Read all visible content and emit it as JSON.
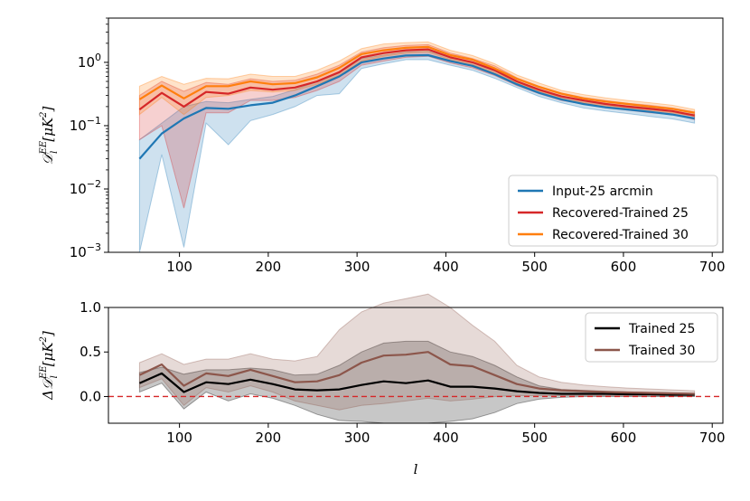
{
  "chart_data": [
    {
      "type": "line",
      "yscale": "log",
      "title": "",
      "ylabel": "D_l^EE [μK²]",
      "ylabel_parts": {
        "main": "𝒟",
        "sup": "EE",
        "sub": "l",
        "bracket": "[μK",
        "pow": "2",
        "close": "]"
      },
      "xlim": [
        20,
        712
      ],
      "ylim": [
        0.001,
        5
      ],
      "xticks": [
        100,
        200,
        300,
        400,
        500,
        600,
        700
      ],
      "xtick_labels": [
        "100",
        "200",
        "300",
        "400",
        "500",
        "600",
        "700"
      ],
      "yticks": [
        0.001,
        0.01,
        0.1,
        1
      ],
      "ytick_labels": [
        {
          "base": "10",
          "exp": "−3"
        },
        {
          "base": "10",
          "exp": "−2"
        },
        {
          "base": "10",
          "exp": "−1"
        },
        {
          "base": "10",
          "exp": "0"
        }
      ],
      "legend_position": "lower-right",
      "x": [
        55,
        80,
        105,
        130,
        155,
        180,
        205,
        230,
        255,
        280,
        305,
        330,
        355,
        380,
        405,
        430,
        455,
        480,
        505,
        530,
        555,
        580,
        605,
        630,
        655,
        680
      ],
      "series": [
        {
          "name": "Input-25 arcmin",
          "color": "#1f77b4",
          "values": [
            0.03,
            0.075,
            0.13,
            0.19,
            0.185,
            0.21,
            0.23,
            0.3,
            0.42,
            0.6,
            1.0,
            1.15,
            1.28,
            1.3,
            1.05,
            0.88,
            0.65,
            0.45,
            0.33,
            0.26,
            0.22,
            0.195,
            0.18,
            0.165,
            0.15,
            0.13
          ],
          "lower": [
            0.001,
            0.035,
            0.0012,
            0.11,
            0.05,
            0.12,
            0.15,
            0.2,
            0.3,
            0.32,
            0.8,
            0.95,
            1.1,
            1.1,
            0.9,
            0.75,
            0.56,
            0.4,
            0.29,
            0.23,
            0.19,
            0.17,
            0.155,
            0.14,
            0.128,
            0.11
          ],
          "upper": [
            0.06,
            0.11,
            0.2,
            0.24,
            0.23,
            0.26,
            0.29,
            0.37,
            0.5,
            0.7,
            1.15,
            1.3,
            1.45,
            1.5,
            1.2,
            1.0,
            0.75,
            0.5,
            0.38,
            0.29,
            0.25,
            0.22,
            0.205,
            0.19,
            0.17,
            0.15
          ]
        },
        {
          "name": "Recovered-Trained 25",
          "color": "#d62728",
          "values": [
            0.18,
            0.33,
            0.2,
            0.34,
            0.32,
            0.4,
            0.37,
            0.4,
            0.5,
            0.7,
            1.2,
            1.4,
            1.55,
            1.6,
            1.2,
            1.0,
            0.75,
            0.5,
            0.37,
            0.29,
            0.25,
            0.22,
            0.2,
            0.185,
            0.17,
            0.145
          ],
          "lower": [
            0.06,
            0.1,
            0.005,
            0.16,
            0.16,
            0.25,
            0.25,
            0.28,
            0.36,
            0.5,
            0.9,
            1.05,
            1.2,
            1.25,
            0.98,
            0.82,
            0.62,
            0.43,
            0.32,
            0.25,
            0.22,
            0.19,
            0.175,
            0.16,
            0.15,
            0.125
          ],
          "upper": [
            0.3,
            0.5,
            0.35,
            0.48,
            0.45,
            0.55,
            0.5,
            0.52,
            0.65,
            0.9,
            1.45,
            1.7,
            1.85,
            1.9,
            1.4,
            1.15,
            0.88,
            0.57,
            0.42,
            0.33,
            0.28,
            0.25,
            0.225,
            0.21,
            0.19,
            0.165
          ]
        },
        {
          "name": "Recovered-Trained 30",
          "color": "#ff7f0e",
          "values": [
            0.26,
            0.43,
            0.27,
            0.42,
            0.42,
            0.5,
            0.45,
            0.47,
            0.58,
            0.82,
            1.35,
            1.55,
            1.7,
            1.75,
            1.3,
            1.1,
            0.8,
            0.55,
            0.41,
            0.32,
            0.27,
            0.24,
            0.22,
            0.2,
            0.185,
            0.16
          ],
          "lower": [
            0.15,
            0.28,
            0.15,
            0.28,
            0.3,
            0.36,
            0.34,
            0.36,
            0.45,
            0.62,
            1.05,
            1.25,
            1.4,
            1.45,
            1.1,
            0.92,
            0.68,
            0.47,
            0.35,
            0.27,
            0.23,
            0.205,
            0.19,
            0.175,
            0.16,
            0.14
          ],
          "upper": [
            0.42,
            0.6,
            0.45,
            0.56,
            0.55,
            0.65,
            0.6,
            0.6,
            0.75,
            1.05,
            1.65,
            1.95,
            2.05,
            2.1,
            1.55,
            1.28,
            0.95,
            0.63,
            0.47,
            0.36,
            0.31,
            0.275,
            0.25,
            0.23,
            0.21,
            0.18
          ]
        }
      ]
    },
    {
      "type": "line",
      "yscale": "linear",
      "title": "",
      "xlabel": "l",
      "ylabel": "ΔD_l^EE [μK²]",
      "ylabel_parts": {
        "main": "Δ𝒟",
        "sup": "EE",
        "sub": "l",
        "bracket": "[μK",
        "pow": "2",
        "close": "]"
      },
      "xlim": [
        20,
        712
      ],
      "ylim": [
        -0.3,
        1.0
      ],
      "xticks": [
        100,
        200,
        300,
        400,
        500,
        600,
        700
      ],
      "xtick_labels": [
        "100",
        "200",
        "300",
        "400",
        "500",
        "600",
        "700"
      ],
      "yticks": [
        0.0,
        0.5,
        1.0
      ],
      "ytick_labels": [
        "0.0",
        "0.5",
        "1.0"
      ],
      "reference_line": {
        "y": 0.0,
        "color": "#d62728",
        "style": "dashed"
      },
      "legend_position": "upper-right",
      "x": [
        55,
        80,
        105,
        130,
        155,
        180,
        205,
        230,
        255,
        280,
        305,
        330,
        355,
        380,
        405,
        430,
        455,
        480,
        505,
        530,
        555,
        580,
        605,
        630,
        655,
        680
      ],
      "series": [
        {
          "name": "Trained 25",
          "color": "#000000",
          "values": [
            0.15,
            0.26,
            0.05,
            0.16,
            0.14,
            0.19,
            0.14,
            0.08,
            0.07,
            0.08,
            0.13,
            0.17,
            0.15,
            0.18,
            0.11,
            0.11,
            0.09,
            0.06,
            0.04,
            0.03,
            0.03,
            0.03,
            0.025,
            0.025,
            0.02,
            0.02
          ],
          "lower": [
            0.05,
            0.15,
            -0.14,
            0.05,
            -0.05,
            0.03,
            -0.02,
            -0.1,
            -0.2,
            -0.27,
            -0.28,
            -0.3,
            -0.3,
            -0.3,
            -0.28,
            -0.25,
            -0.18,
            -0.08,
            -0.03,
            -0.01,
            0.0,
            0.0,
            0.0,
            0.0,
            0.0,
            0.0
          ],
          "upper": [
            0.27,
            0.33,
            0.25,
            0.3,
            0.3,
            0.32,
            0.3,
            0.24,
            0.25,
            0.35,
            0.5,
            0.6,
            0.62,
            0.62,
            0.5,
            0.45,
            0.35,
            0.22,
            0.12,
            0.08,
            0.07,
            0.06,
            0.05,
            0.045,
            0.04,
            0.035
          ]
        },
        {
          "name": "Trained 30",
          "color": "#8c564b",
          "values": [
            0.24,
            0.36,
            0.12,
            0.26,
            0.23,
            0.3,
            0.23,
            0.16,
            0.17,
            0.24,
            0.38,
            0.46,
            0.47,
            0.5,
            0.36,
            0.34,
            0.24,
            0.14,
            0.09,
            0.07,
            0.06,
            0.05,
            0.045,
            0.04,
            0.035,
            0.03
          ],
          "lower": [
            0.1,
            0.2,
            -0.1,
            0.1,
            0.05,
            0.12,
            0.05,
            -0.05,
            -0.1,
            -0.15,
            -0.1,
            -0.08,
            -0.05,
            -0.02,
            -0.05,
            -0.03,
            0.0,
            0.01,
            0.01,
            0.01,
            0.01,
            0.01,
            0.005,
            0.005,
            0.005,
            0.005
          ],
          "upper": [
            0.38,
            0.48,
            0.36,
            0.42,
            0.42,
            0.48,
            0.42,
            0.4,
            0.45,
            0.75,
            0.95,
            1.05,
            1.1,
            1.15,
            1.0,
            0.8,
            0.62,
            0.35,
            0.22,
            0.16,
            0.13,
            0.11,
            0.095,
            0.085,
            0.075,
            0.065
          ]
        }
      ]
    }
  ]
}
